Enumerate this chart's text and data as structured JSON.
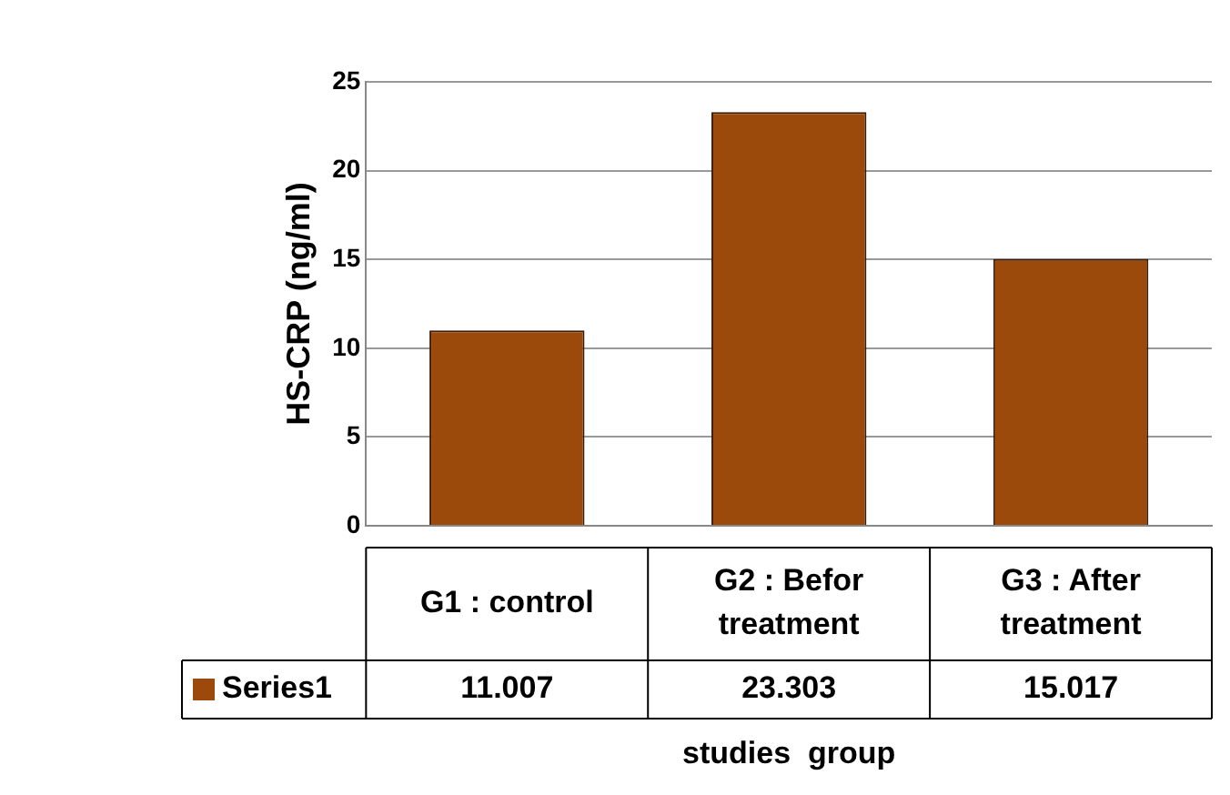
{
  "chart_data": {
    "type": "bar",
    "ylabel": "HS-CRP (ng/ml)",
    "xlabel": "studies  group",
    "categories": [
      "G1 : control",
      "G2 : Befor treatment",
      "G3 : After treatment"
    ],
    "series": [
      {
        "name": "Series1",
        "color": "#9c4a0c",
        "values": [
          11.007,
          23.303,
          15.017
        ]
      }
    ],
    "ylim": [
      0,
      25
    ],
    "yticks": [
      0,
      5,
      10,
      15,
      20,
      25
    ],
    "grid": "y",
    "data_labels": true
  }
}
